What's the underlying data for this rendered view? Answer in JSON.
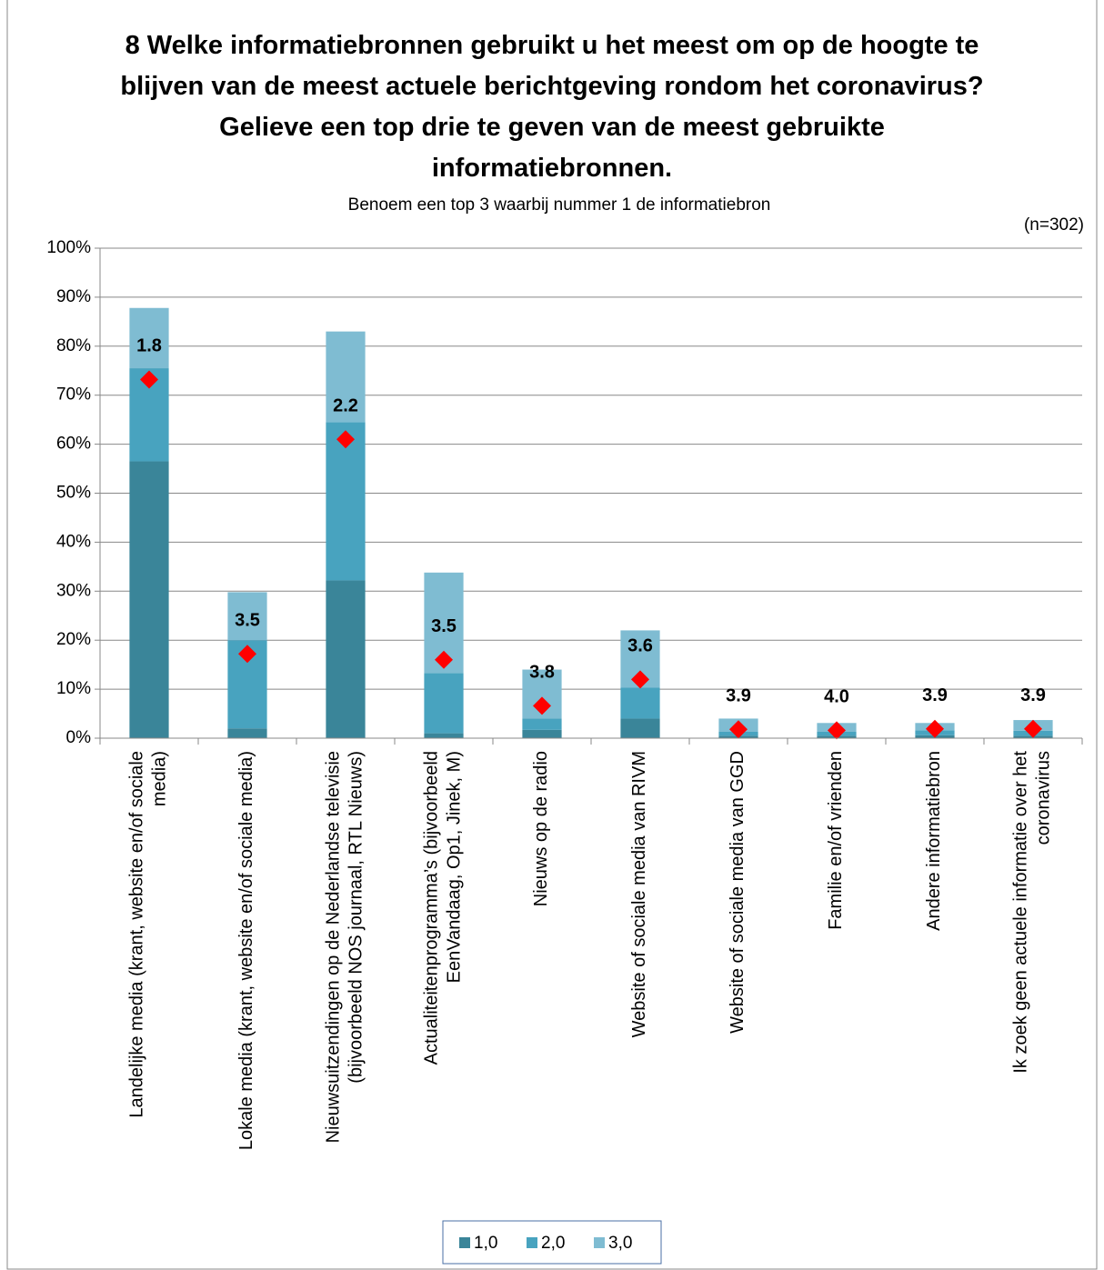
{
  "chart_data": {
    "type": "bar",
    "stacked": true,
    "title": "8 Welke informatiebronnen gebruikt u het meest om op de hoogte te blijven van de meest actuele berichtgeving rondom het coronavirus? Gelieve een top drie te geven van de meest gebruikte informatiebronnen.",
    "subtitle": "Benoem een top 3 waarbij nummer 1 de informatiebron",
    "note": "(n=302)",
    "categories": [
      "Landelijke media (krant, website en/of sociale media)",
      "Lokale media (krant, website en/of sociale media)",
      "Nieuwsuitzendingen op de Nederlandse televisie (bijvoorbeeld NOS journaal, RTL Nieuws)",
      "Actualiteitenprogramma’s (bijvoorbeeld EenVandaag, Op1, Jinek, M)",
      "Nieuws op de radio",
      "Website of sociale media van RIVM",
      "Website of sociale media van GGD",
      "Familie en/of vrienden",
      "Andere informatiebron",
      "Ik zoek geen actuele informatie over het coronavirus"
    ],
    "series": [
      {
        "name": "1,0",
        "color": "#3a8599",
        "values": [
          56.5,
          2,
          32.2,
          1,
          1.7,
          4,
          0.5,
          0.5,
          0.6,
          0.5
        ]
      },
      {
        "name": "2,0",
        "color": "#48a3bf",
        "values": [
          19,
          18,
          32.3,
          12.3,
          2.3,
          6.3,
          0.8,
          0.8,
          1,
          1
        ]
      },
      {
        "name": "3,0",
        "color": "#7fbcd2",
        "values": [
          12.3,
          9.8,
          18.5,
          20.5,
          10,
          11.7,
          2.7,
          1.8,
          1.5,
          2.2
        ]
      }
    ],
    "markers": {
      "color": "#ff0000",
      "values": [
        73.2,
        17.2,
        61,
        16,
        6.6,
        12,
        1.8,
        1.6,
        1.9,
        1.9
      ]
    },
    "averages": [
      "1.8",
      "3.5",
      "2.2",
      "3.5",
      "3.8",
      "3.6",
      "3.9",
      "4.0",
      "3.9",
      "3.9"
    ],
    "ylim": [
      0,
      100
    ],
    "yticks": [
      {
        "value": 0,
        "label": "0%"
      },
      {
        "value": 10,
        "label": "10%"
      },
      {
        "value": 20,
        "label": "20%"
      },
      {
        "value": 30,
        "label": "30%"
      },
      {
        "value": 40,
        "label": "40%"
      },
      {
        "value": 50,
        "label": "50%"
      },
      {
        "value": 60,
        "label": "60%"
      },
      {
        "value": 70,
        "label": "70%"
      },
      {
        "value": 80,
        "label": "80%"
      },
      {
        "value": 90,
        "label": "90%"
      },
      {
        "value": 100,
        "label": "100%"
      }
    ],
    "grid": true,
    "legend": "bottom"
  }
}
